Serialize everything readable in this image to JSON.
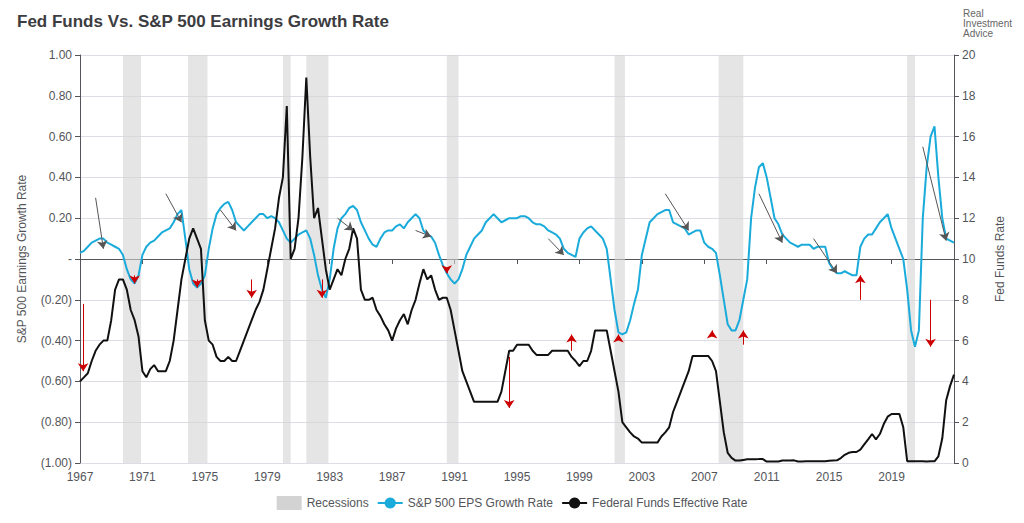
{
  "chart_data": {
    "type": "line",
    "title": "Fed Funds Vs. S&P 500 Earnings Growth Rate",
    "ylabel": "S&P 500 Earnings Growth Rate",
    "y2label": "Fed Funds Rate",
    "watermark": "Real\nInvestment\nAdvice",
    "grid": true,
    "legend": "bottom",
    "xlim": [
      1967,
      2023
    ],
    "xticks": [
      1967,
      1971,
      1975,
      1979,
      1983,
      1987,
      1991,
      1995,
      1999,
      2003,
      2007,
      2011,
      2015,
      2019
    ],
    "ylim": [
      -1.0,
      1.0
    ],
    "yticks": [
      {
        "value": -1.0,
        "label": "(1.00)"
      },
      {
        "value": -0.8,
        "label": "(0.80)"
      },
      {
        "value": -0.6,
        "label": "(0.60)"
      },
      {
        "value": -0.4,
        "label": "(0.40)"
      },
      {
        "value": -0.2,
        "label": "(0.20)"
      },
      {
        "value": 0.0,
        "label": "-"
      },
      {
        "value": 0.2,
        "label": "0.20"
      },
      {
        "value": 0.4,
        "label": "0.40"
      },
      {
        "value": 0.6,
        "label": "0.60"
      },
      {
        "value": 0.8,
        "label": "0.80"
      },
      {
        "value": 1.0,
        "label": "1.00"
      }
    ],
    "y2lim": [
      0,
      20
    ],
    "y2ticks": [
      0,
      2,
      4,
      6,
      8,
      10,
      12,
      14,
      16,
      18,
      20
    ],
    "recessions": {
      "name": "Recessions",
      "color": "#d3d3d3",
      "spans": [
        [
          1969.75,
          1970.917
        ],
        [
          1973.917,
          1975.167
        ],
        [
          1980.0,
          1980.5
        ],
        [
          1981.5,
          1982.917
        ],
        [
          1990.5,
          1991.25
        ],
        [
          2001.25,
          2001.917
        ],
        [
          2007.917,
          2009.5
        ],
        [
          2020.0,
          2020.5
        ]
      ]
    },
    "x": [
      1967.0,
      1967.25,
      1967.5,
      1967.75,
      1968.0,
      1968.25,
      1968.5,
      1968.75,
      1969.0,
      1969.25,
      1969.5,
      1969.75,
      1970.0,
      1970.25,
      1970.5,
      1970.75,
      1971.0,
      1971.25,
      1971.5,
      1971.75,
      1972.0,
      1972.25,
      1972.5,
      1972.75,
      1973.0,
      1973.25,
      1973.5,
      1973.75,
      1974.0,
      1974.25,
      1974.5,
      1974.75,
      1975.0,
      1975.25,
      1975.5,
      1975.75,
      1976.0,
      1976.25,
      1976.5,
      1976.75,
      1977.0,
      1977.25,
      1977.5,
      1977.75,
      1978.0,
      1978.25,
      1978.5,
      1978.75,
      1979.0,
      1979.25,
      1979.5,
      1979.75,
      1980.0,
      1980.25,
      1980.5,
      1980.75,
      1981.0,
      1981.25,
      1981.5,
      1981.75,
      1982.0,
      1982.25,
      1982.5,
      1982.75,
      1983.0,
      1983.25,
      1983.5,
      1983.75,
      1984.0,
      1984.25,
      1984.5,
      1984.75,
      1985.0,
      1985.25,
      1985.5,
      1985.75,
      1986.0,
      1986.25,
      1986.5,
      1986.75,
      1987.0,
      1987.25,
      1987.5,
      1987.75,
      1988.0,
      1988.25,
      1988.5,
      1988.75,
      1989.0,
      1989.25,
      1989.5,
      1989.75,
      1990.0,
      1990.25,
      1990.5,
      1990.75,
      1991.0,
      1991.25,
      1991.5,
      1991.75,
      1992.0,
      1992.25,
      1992.5,
      1992.75,
      1993.0,
      1993.25,
      1993.5,
      1993.75,
      1994.0,
      1994.25,
      1994.5,
      1994.75,
      1995.0,
      1995.25,
      1995.5,
      1995.75,
      1996.0,
      1996.25,
      1996.5,
      1996.75,
      1997.0,
      1997.25,
      1997.5,
      1997.75,
      1998.0,
      1998.25,
      1998.5,
      1998.75,
      1999.0,
      1999.25,
      1999.5,
      1999.75,
      2000.0,
      2000.25,
      2000.5,
      2000.75,
      2001.0,
      2001.25,
      2001.5,
      2001.75,
      2002.0,
      2002.25,
      2002.5,
      2002.75,
      2003.0,
      2003.25,
      2003.5,
      2003.75,
      2004.0,
      2004.25,
      2004.5,
      2004.75,
      2005.0,
      2005.25,
      2005.5,
      2005.75,
      2006.0,
      2006.25,
      2006.5,
      2006.75,
      2007.0,
      2007.25,
      2007.5,
      2007.75,
      2008.0,
      2008.25,
      2008.5,
      2008.75,
      2009.0,
      2009.25,
      2009.5,
      2009.75,
      2010.0,
      2010.25,
      2010.5,
      2010.75,
      2011.0,
      2011.25,
      2011.5,
      2011.75,
      2012.0,
      2012.25,
      2012.5,
      2012.75,
      2013.0,
      2013.25,
      2013.5,
      2013.75,
      2014.0,
      2014.25,
      2014.5,
      2014.75,
      2015.0,
      2015.25,
      2015.5,
      2015.75,
      2016.0,
      2016.25,
      2016.5,
      2016.75,
      2017.0,
      2017.25,
      2017.5,
      2017.75,
      2018.0,
      2018.25,
      2018.5,
      2018.75,
      2019.0,
      2019.25,
      2019.5,
      2019.75,
      2020.0,
      2020.25,
      2020.5,
      2020.75,
      2021.0,
      2021.25,
      2021.5,
      2021.75,
      2022.0,
      2022.25,
      2022.5,
      2022.75,
      2023.0
    ],
    "series": [
      {
        "name": "S&P 500 EPS Growth Rate",
        "color": "#1aabdb",
        "values": [
          0.03,
          0.04,
          0.06,
          0.08,
          0.09,
          0.1,
          0.1,
          0.08,
          0.07,
          0.06,
          0.05,
          0.02,
          -0.05,
          -0.1,
          -0.12,
          -0.08,
          0.02,
          0.06,
          0.08,
          0.09,
          0.11,
          0.13,
          0.14,
          0.15,
          0.18,
          0.22,
          0.24,
          0.1,
          -0.05,
          -0.12,
          -0.14,
          -0.12,
          -0.08,
          0.05,
          0.15,
          0.22,
          0.25,
          0.27,
          0.28,
          0.24,
          0.18,
          0.16,
          0.14,
          0.16,
          0.18,
          0.2,
          0.22,
          0.22,
          0.2,
          0.21,
          0.2,
          0.18,
          0.14,
          0.1,
          0.08,
          0.1,
          0.12,
          0.13,
          0.14,
          0.1,
          0.02,
          -0.08,
          -0.15,
          -0.19,
          -0.1,
          0.05,
          0.15,
          0.2,
          0.22,
          0.25,
          0.26,
          0.24,
          0.18,
          0.14,
          0.1,
          0.07,
          0.06,
          0.1,
          0.13,
          0.14,
          0.14,
          0.16,
          0.17,
          0.15,
          0.18,
          0.2,
          0.22,
          0.2,
          0.14,
          0.12,
          0.11,
          0.08,
          0.02,
          -0.03,
          -0.07,
          -0.1,
          -0.12,
          -0.1,
          -0.05,
          0.02,
          0.06,
          0.1,
          0.12,
          0.14,
          0.18,
          0.2,
          0.22,
          0.2,
          0.18,
          0.19,
          0.2,
          0.2,
          0.2,
          0.21,
          0.21,
          0.2,
          0.18,
          0.17,
          0.17,
          0.16,
          0.14,
          0.13,
          0.12,
          0.1,
          0.05,
          0.03,
          0.02,
          0.01,
          0.1,
          0.13,
          0.15,
          0.16,
          0.14,
          0.12,
          0.1,
          0.05,
          -0.1,
          -0.25,
          -0.36,
          -0.37,
          -0.36,
          -0.3,
          -0.22,
          -0.15,
          0.02,
          0.1,
          0.18,
          0.2,
          0.22,
          0.23,
          0.24,
          0.24,
          0.18,
          0.17,
          0.16,
          0.15,
          0.12,
          0.13,
          0.14,
          0.14,
          0.08,
          0.06,
          0.05,
          0.03,
          -0.08,
          -0.2,
          -0.32,
          -0.35,
          -0.35,
          -0.3,
          -0.2,
          -0.1,
          0.2,
          0.35,
          0.45,
          0.47,
          0.4,
          0.3,
          0.2,
          0.17,
          0.12,
          0.1,
          0.08,
          0.07,
          0.06,
          0.07,
          0.07,
          0.07,
          0.05,
          0.06,
          0.06,
          0.06,
          -0.02,
          -0.05,
          -0.07,
          -0.07,
          -0.06,
          -0.07,
          -0.08,
          -0.08,
          0.06,
          0.1,
          0.12,
          0.12,
          0.15,
          0.18,
          0.2,
          0.22,
          0.15,
          0.1,
          0.05,
          0.0,
          -0.15,
          -0.35,
          -0.43,
          -0.35,
          0.2,
          0.45,
          0.6,
          0.65,
          0.4,
          0.2,
          0.1,
          0.09,
          0.08
        ]
      },
      {
        "name": "Federal Funds Effective Rate",
        "color": "#111111",
        "axis": "y2",
        "values": [
          4.0,
          4.2,
          4.4,
          5.0,
          5.5,
          5.8,
          6.0,
          6.0,
          7.0,
          8.5,
          9.0,
          9.0,
          8.5,
          7.5,
          7.0,
          6.2,
          4.5,
          4.2,
          4.6,
          4.8,
          4.5,
          4.5,
          4.5,
          5.0,
          6.0,
          7.5,
          9.0,
          10.0,
          11.0,
          11.5,
          11.0,
          10.5,
          7.0,
          6.0,
          5.8,
          5.2,
          5.0,
          5.0,
          5.2,
          5.0,
          5.0,
          5.5,
          6.0,
          6.5,
          7.0,
          7.5,
          7.9,
          8.5,
          9.5,
          10.5,
          11.5,
          13.0,
          14.0,
          17.5,
          10.0,
          10.5,
          12.0,
          15.0,
          18.9,
          15.0,
          12.0,
          12.5,
          11.0,
          9.5,
          8.5,
          9.0,
          9.5,
          9.2,
          10.0,
          10.5,
          11.5,
          11.0,
          8.5,
          8.0,
          8.0,
          8.1,
          7.5,
          7.2,
          6.8,
          6.5,
          6.0,
          6.6,
          7.0,
          7.3,
          6.8,
          7.5,
          8.0,
          8.8,
          9.5,
          9.0,
          9.2,
          8.5,
          8.0,
          8.1,
          8.1,
          7.5,
          6.5,
          5.5,
          4.5,
          4.0,
          3.5,
          3.0,
          3.0,
          3.0,
          3.0,
          3.0,
          3.0,
          3.0,
          3.5,
          4.5,
          5.5,
          5.5,
          5.8,
          5.8,
          5.8,
          5.8,
          5.5,
          5.3,
          5.3,
          5.3,
          5.3,
          5.5,
          5.5,
          5.5,
          5.5,
          5.5,
          5.2,
          5.0,
          4.75,
          5.0,
          5.0,
          5.5,
          6.5,
          6.5,
          6.5,
          6.5,
          5.5,
          4.5,
          3.5,
          2.0,
          1.75,
          1.5,
          1.3,
          1.2,
          1.0,
          1.0,
          1.0,
          1.0,
          1.0,
          1.3,
          1.5,
          1.75,
          2.5,
          3.0,
          3.5,
          4.0,
          4.5,
          5.25,
          5.25,
          5.25,
          5.25,
          5.25,
          5.0,
          4.5,
          3.0,
          1.5,
          0.5,
          0.25,
          0.12,
          0.12,
          0.15,
          0.18,
          0.18,
          0.18,
          0.19,
          0.19,
          0.07,
          0.07,
          0.07,
          0.07,
          0.12,
          0.12,
          0.12,
          0.13,
          0.07,
          0.07,
          0.08,
          0.09,
          0.09,
          0.09,
          0.09,
          0.09,
          0.11,
          0.12,
          0.13,
          0.24,
          0.4,
          0.5,
          0.54,
          0.54,
          0.66,
          0.91,
          1.16,
          1.42,
          1.16,
          1.42,
          1.91,
          2.27,
          2.4,
          2.4,
          2.4,
          1.75,
          0.09,
          0.09,
          0.09,
          0.09,
          0.09,
          0.07,
          0.09,
          0.08,
          0.33,
          1.21,
          3.08,
          3.78,
          4.33
        ]
      }
    ],
    "arrows": [
      {
        "color": "#555555",
        "items": [
          {
            "x1": 1968.0,
            "y1": 0.3,
            "x2": 1968.5,
            "y2": 0.05
          },
          {
            "x1": 1972.5,
            "y1": 0.32,
            "x2": 1973.5,
            "y2": 0.18
          },
          {
            "x1": 1976.0,
            "y1": 0.24,
            "x2": 1977.0,
            "y2": 0.14
          },
          {
            "x1": 1983.5,
            "y1": 0.2,
            "x2": 1984.5,
            "y2": 0.14
          },
          {
            "x1": 1988.5,
            "y1": 0.14,
            "x2": 1989.5,
            "y2": 0.11
          },
          {
            "x1": 1997.0,
            "y1": 0.1,
            "x2": 1998.0,
            "y2": 0.02
          },
          {
            "x1": 2004.5,
            "y1": 0.32,
            "x2": 2006.0,
            "y2": 0.14
          },
          {
            "x1": 2010.5,
            "y1": 0.32,
            "x2": 2012.0,
            "y2": 0.08
          },
          {
            "x1": 2014.0,
            "y1": 0.1,
            "x2": 2015.5,
            "y2": -0.07
          },
          {
            "x1": 2021.0,
            "y1": 0.55,
            "x2": 2022.5,
            "y2": 0.09
          }
        ]
      },
      {
        "color": "#cc0000",
        "items": [
          {
            "x1": 1967.2,
            "y1": -0.22,
            "x2": 1967.2,
            "y2": -0.55
          },
          {
            "x1": 1970.5,
            "y1": -0.08,
            "x2": 1970.5,
            "y2": -0.12
          },
          {
            "x1": 1974.5,
            "y1": -0.1,
            "x2": 1974.5,
            "y2": -0.14
          },
          {
            "x1": 1978.0,
            "y1": -0.1,
            "x2": 1978.0,
            "y2": -0.19
          },
          {
            "x1": 1982.5,
            "y1": -0.1,
            "x2": 1982.5,
            "y2": -0.19
          },
          {
            "x1": 1990.5,
            "y1": -0.05,
            "x2": 1990.5,
            "y2": -0.07
          },
          {
            "x1": 1994.5,
            "y1": -0.48,
            "x2": 1994.5,
            "y2": -0.73
          },
          {
            "x1": 1998.5,
            "y1": -0.45,
            "x2": 1998.5,
            "y2": -0.37
          },
          {
            "x1": 2001.5,
            "y1": -0.38,
            "x2": 2001.5,
            "y2": -0.37
          },
          {
            "x1": 2007.5,
            "y1": -0.38,
            "x2": 2007.5,
            "y2": -0.35
          },
          {
            "x1": 2009.5,
            "y1": -0.42,
            "x2": 2009.5,
            "y2": -0.35
          },
          {
            "x1": 2017.0,
            "y1": -0.2,
            "x2": 2017.0,
            "y2": -0.08
          },
          {
            "x1": 2021.5,
            "y1": -0.2,
            "x2": 2021.5,
            "y2": -0.43
          }
        ]
      }
    ]
  }
}
